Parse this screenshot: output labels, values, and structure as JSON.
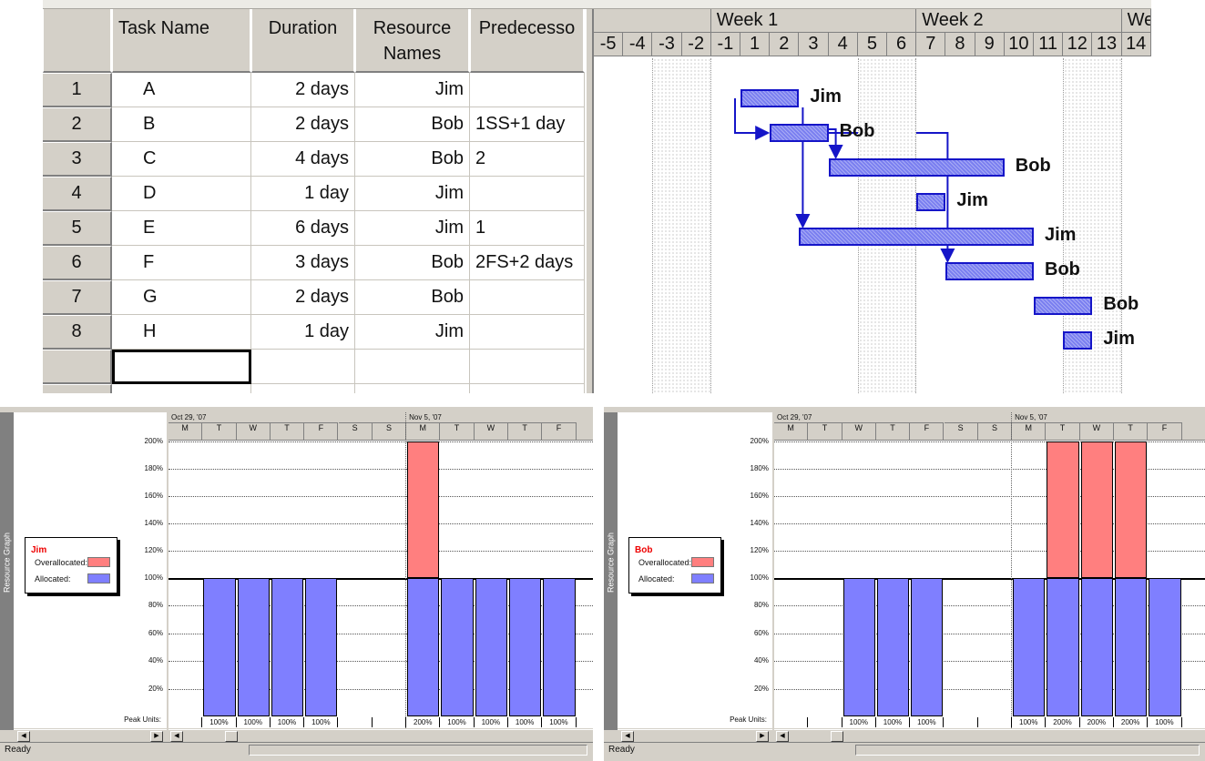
{
  "task_table": {
    "columns": [
      "Task Name",
      "Duration",
      "Resource Names",
      "Predecesso"
    ],
    "rows": [
      {
        "id": "1",
        "name": "A",
        "duration": "2 days",
        "resource": "Jim",
        "pred": ""
      },
      {
        "id": "2",
        "name": "B",
        "duration": "2 days",
        "resource": "Bob",
        "pred": "1SS+1 day"
      },
      {
        "id": "3",
        "name": "C",
        "duration": "4 days",
        "resource": "Bob",
        "pred": "2"
      },
      {
        "id": "4",
        "name": "D",
        "duration": "1 day",
        "resource": "Jim",
        "pred": ""
      },
      {
        "id": "5",
        "name": "E",
        "duration": "6 days",
        "resource": "Jim",
        "pred": "1"
      },
      {
        "id": "6",
        "name": "F",
        "duration": "3 days",
        "resource": "Bob",
        "pred": "2FS+2 days"
      },
      {
        "id": "7",
        "name": "G",
        "duration": "2 days",
        "resource": "Bob",
        "pred": ""
      },
      {
        "id": "8",
        "name": "H",
        "duration": "1 day",
        "resource": "Jim",
        "pred": ""
      }
    ]
  },
  "gantt": {
    "weeks": [
      "Week 1",
      "Week 2",
      "We"
    ],
    "days": [
      "-5",
      "-4",
      "-3",
      "-2",
      "-1",
      "1",
      "2",
      "3",
      "4",
      "5",
      "6",
      "7",
      "8",
      "9",
      "10",
      "11",
      "12",
      "13",
      "14"
    ],
    "bars": [
      {
        "start": 1,
        "length": 2,
        "label": "Jim"
      },
      {
        "start": 2,
        "length": 2,
        "label": "Bob"
      },
      {
        "start": 4,
        "length": 6,
        "label": "Bob"
      },
      {
        "start": 7,
        "length": 1,
        "label": "Jim"
      },
      {
        "start": 3,
        "length": 8,
        "label": "Jim"
      },
      {
        "start": 8,
        "length": 3,
        "label": "Bob"
      },
      {
        "start": 11,
        "length": 2,
        "label": "Bob"
      },
      {
        "start": 12,
        "length": 1,
        "label": "Jim"
      }
    ]
  },
  "resource_graphs": [
    {
      "side_label": "Resource Graph",
      "resource": "Jim",
      "legend_over": "Overallocated:",
      "legend_alloc": "Allocated:",
      "week_labels": [
        "Oct 29, '07",
        "Nov 5, '07"
      ],
      "days": [
        "M",
        "T",
        "W",
        "T",
        "F",
        "S",
        "S",
        "M",
        "T",
        "W",
        "T",
        "F"
      ],
      "y_ticks": [
        "200%",
        "180%",
        "160%",
        "140%",
        "120%",
        "100%",
        "80%",
        "60%",
        "40%",
        "20%"
      ],
      "peak_label": "Peak Units:",
      "values": [
        0,
        100,
        100,
        100,
        100,
        0,
        0,
        200,
        100,
        100,
        100,
        100
      ],
      "peak_units": [
        "",
        "100%",
        "100%",
        "100%",
        "100%",
        "",
        "",
        "200%",
        "100%",
        "100%",
        "100%",
        "100%"
      ],
      "status": "Ready"
    },
    {
      "side_label": "Resource Graph",
      "resource": "Bob",
      "legend_over": "Overallocated:",
      "legend_alloc": "Allocated:",
      "week_labels": [
        "Oct 29, '07",
        "Nov 5, '07"
      ],
      "days": [
        "M",
        "T",
        "W",
        "T",
        "F",
        "S",
        "S",
        "M",
        "T",
        "W",
        "T",
        "F"
      ],
      "y_ticks": [
        "200%",
        "180%",
        "160%",
        "140%",
        "120%",
        "100%",
        "80%",
        "60%",
        "40%",
        "20%"
      ],
      "peak_label": "Peak Units:",
      "values": [
        0,
        0,
        100,
        100,
        100,
        0,
        0,
        100,
        200,
        200,
        200,
        100
      ],
      "peak_units": [
        "",
        "",
        "100%",
        "100%",
        "100%",
        "",
        "",
        "100%",
        "200%",
        "200%",
        "200%",
        "100%"
      ],
      "status": "Ready"
    }
  ],
  "colors": {
    "allocated": "#7f7fff",
    "overallocated": "#ff7f7f",
    "gantt_bar": "#7a7ff0",
    "gantt_link": "#1515c8"
  }
}
